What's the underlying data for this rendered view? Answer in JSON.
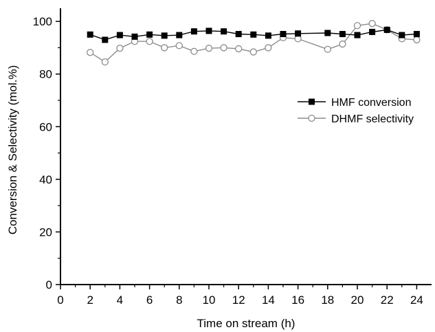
{
  "chart_data": {
    "type": "line",
    "title": "",
    "xlabel": "Time on stream (h)",
    "ylabel": "Conversion & Selectivity (mol.%)",
    "xlim": [
      0,
      25
    ],
    "ylim": [
      0,
      105
    ],
    "xticks": [
      0,
      2,
      4,
      6,
      8,
      10,
      12,
      14,
      16,
      18,
      20,
      22,
      24
    ],
    "yticks": [
      0,
      20,
      40,
      60,
      80,
      100
    ],
    "grid": false,
    "legend_position": "right",
    "series": [
      {
        "name": "HMF conversion",
        "marker": "filled-square",
        "color": "#000000",
        "x": [
          2,
          3,
          4,
          5,
          6,
          7,
          8,
          9,
          10,
          11,
          12,
          13,
          14,
          15,
          16,
          18,
          19,
          20,
          21,
          22,
          23,
          24
        ],
        "y": [
          95,
          93,
          94.8,
          94.2,
          95,
          94.6,
          94.8,
          96.2,
          96.4,
          96.2,
          95.2,
          95,
          94.6,
          95.2,
          95.4,
          95.6,
          95.2,
          94.8,
          96,
          96.8,
          94.8,
          95.2
        ]
      },
      {
        "name": "DHMF selectivity",
        "marker": "open-circle",
        "color": "#8c8c8c",
        "x": [
          2,
          3,
          4,
          5,
          6,
          7,
          8,
          9,
          10,
          11,
          12,
          13,
          14,
          15,
          16,
          18,
          19,
          20,
          21,
          22,
          23,
          24
        ],
        "y": [
          88.2,
          84.6,
          89.8,
          92.4,
          92.4,
          90,
          90.8,
          88.6,
          89.8,
          90,
          89.6,
          88.4,
          90,
          93.8,
          93.4,
          89.4,
          91.4,
          98.4,
          99.2,
          96.8,
          93.4,
          93
        ]
      }
    ]
  }
}
